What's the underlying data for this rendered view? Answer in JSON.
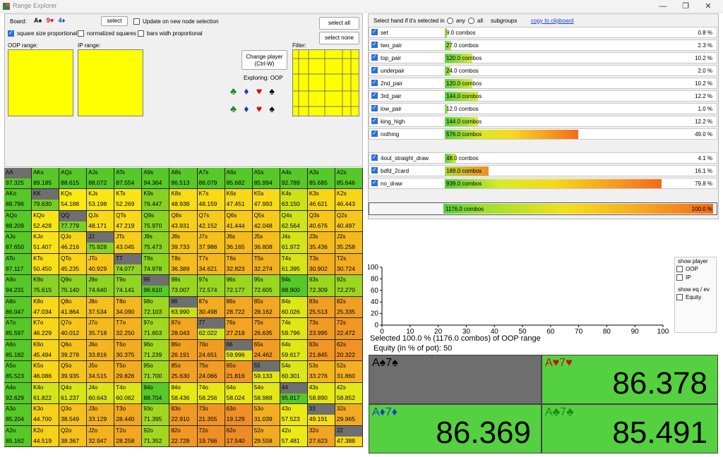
{
  "window": {
    "title": "Range Explorer",
    "controls": [
      "—",
      "❐",
      "✕"
    ]
  },
  "left": {
    "board_label": "Board:",
    "board_cards": [
      {
        "rank": "A",
        "suit": "♠",
        "color": "#000000"
      },
      {
        "rank": "9",
        "suit": "♥",
        "color": "#d01010"
      },
      {
        "rank": "4",
        "suit": "♦",
        "color": "#1a3fc8"
      }
    ],
    "select_btn": "select",
    "update_label": "Update on new node selection",
    "square_prop": "square size proportional",
    "normalized": "normalized squares",
    "bars_prop": "bars widh proportional",
    "oop_range": "OOP range:",
    "ip_range": "IP range:",
    "change_player": "Change player",
    "change_player_shortcut": "(Ctrl-W)",
    "exploring": "Exploring: OOP",
    "filter": "Filter:",
    "select_all": "select all",
    "select_none": "select none",
    "suits_row1": [
      {
        "g": "♣",
        "c": "#1a8a1a"
      },
      {
        "g": "♦",
        "c": "#1a3fc8"
      },
      {
        "g": "♥",
        "c": "#d01010"
      },
      {
        "g": "♠",
        "c": "#000000"
      }
    ],
    "suits_row2": [
      {
        "g": "♣",
        "c": "#1a8a1a"
      },
      {
        "g": "♦",
        "c": "#1a3fc8"
      },
      {
        "g": "♥",
        "c": "#d01010"
      },
      {
        "g": "♠",
        "c": "#000000"
      }
    ]
  },
  "grid": {
    "cells": [
      [
        "AA",
        "97.325",
        "AKs",
        "89.185",
        "AQs",
        "88.615",
        "AJs",
        "88.072",
        "ATs",
        "87.554",
        "A9s",
        "94.364",
        "A8s",
        "86.513",
        "A7s",
        "86.079",
        "A6s",
        "85.682",
        "A5s",
        "85.994",
        "A4s",
        "92.789",
        "A3s",
        "85.685",
        "A2s",
        "85.646"
      ],
      [
        "AKo",
        "88.796",
        "KK",
        "79.630",
        "KQs",
        "54.188",
        "KJs",
        "53.198",
        "KTs",
        "52.269",
        "K9s",
        "76.447",
        "K8s",
        "48.938",
        "K7s",
        "48.159",
        "K6s",
        "47.451",
        "K5s",
        "47.993",
        "K4s",
        "63.150",
        "K3s",
        "46.621",
        "K2s",
        "46.443"
      ],
      [
        "AQo",
        "88.209",
        "KQo",
        "52.428",
        "QQ",
        "77.779",
        "QJs",
        "48.171",
        "QTs",
        "47.219",
        "Q9s",
        "75.970",
        "Q8s",
        "43.931",
        "Q7s",
        "42.152",
        "Q6s",
        "41.444",
        "Q5s",
        "42.048",
        "Q4s",
        "62.564",
        "Q3s",
        "40.676",
        "Q2s",
        "40.497"
      ],
      [
        "AJo",
        "87.650",
        "KJo",
        "51.407",
        "QJo",
        "46.216",
        "JJ",
        "75.928",
        "JTs",
        "43.045",
        "J9s",
        "75.473",
        "J8s",
        "39.733",
        "J7s",
        "37.988",
        "J6s",
        "36.165",
        "J5s",
        "36.808",
        "J4s",
        "61.972",
        "J3s",
        "35.436",
        "J2s",
        "35.258"
      ],
      [
        "ATo",
        "87.117",
        "KTo",
        "50.450",
        "QTo",
        "45.235",
        "JTo",
        "40.929",
        "TT",
        "74.077",
        "T9s",
        "74.978",
        "T8s",
        "36.389",
        "T7s",
        "34.621",
        "T6s",
        "32.823",
        "T5s",
        "32.274",
        "T4s",
        "61.395",
        "T3s",
        "30.902",
        "T2s",
        "30.724"
      ],
      [
        "A9o",
        "94.231",
        "K9o",
        "75.615",
        "Q9o",
        "75.140",
        "J9o",
        "74.640",
        "T9o",
        "74.141",
        "99",
        "96.610",
        "98s",
        "73.007",
        "97s",
        "72.574",
        "96s",
        "72.177",
        "95s",
        "72.605",
        "94s",
        "88.900",
        "93s",
        "72.309",
        "92s",
        "72.270"
      ],
      [
        "A8o",
        "86.047",
        "K8o",
        "47.034",
        "Q8o",
        "41.864",
        "J8o",
        "37.534",
        "T8o",
        "34.090",
        "98o",
        "72.103",
        "88",
        "63.990",
        "87s",
        "30.498",
        "86s",
        "28.722",
        "85s",
        "28.162",
        "84s",
        "60.026",
        "83s",
        "25.513",
        "82s",
        "25.335"
      ],
      [
        "A7o",
        "85.597",
        "K7o",
        "46.229",
        "Q7o",
        "40.012",
        "J7o",
        "35.718",
        "T7o",
        "32.250",
        "97o",
        "71.653",
        "87o",
        "28.043",
        "77",
        "62.022",
        "76s",
        "27.218",
        "75s",
        "26.635",
        "74s",
        "59.796",
        "73s",
        "23.995",
        "72s",
        "22.472"
      ],
      [
        "A6o",
        "85.182",
        "K6o",
        "45.494",
        "Q6o",
        "39.278",
        "J6o",
        "33.816",
        "T6o",
        "30.375",
        "96o",
        "71.239",
        "86o",
        "26.191",
        "76o",
        "24.651",
        "66",
        "59.996",
        "65s",
        "24.462",
        "64s",
        "59.617",
        "63s",
        "21.845",
        "62s",
        "20.322"
      ],
      [
        "A5o",
        "85.523",
        "K5o",
        "46.086",
        "Q5o",
        "39.935",
        "J5o",
        "34.515",
        "T5o",
        "29.826",
        "95o",
        "71.700",
        "85o",
        "25.630",
        "75o",
        "24.066",
        "65o",
        "21.816",
        "55",
        "59.133",
        "54s",
        "60.301",
        "53s",
        "33.276",
        "52s",
        "31.860"
      ],
      [
        "A4o",
        "92.629",
        "K4o",
        "61.822",
        "Q4o",
        "61.237",
        "J4o",
        "60.643",
        "T4o",
        "60.062",
        "94o",
        "88.704",
        "84o",
        "58.436",
        "74o",
        "58.256",
        "64o",
        "58.024",
        "54o",
        "58.988",
        "44",
        "95.817",
        "43s",
        "58.890",
        "42s",
        "58.852"
      ],
      [
        "A3o",
        "85.204",
        "K3o",
        "44.700",
        "Q3o",
        "38.549",
        "J3o",
        "33.129",
        "T3o",
        "28.440",
        "93o",
        "71.395",
        "83o",
        "22.910",
        "73o",
        "21.355",
        "63o",
        "19.129",
        "53o",
        "31.039",
        "43o",
        "57.523",
        "33",
        "49.191",
        "32s",
        "29.965"
      ],
      [
        "A2o",
        "85.162",
        "K2o",
        "44.519",
        "Q2o",
        "38.367",
        "J2o",
        "32.947",
        "T2o",
        "28.258",
        "92o",
        "71.352",
        "82o",
        "22.728",
        "72o",
        "19.766",
        "62o",
        "17.540",
        "52o",
        "29.558",
        "42o",
        "57.481",
        "32o",
        "27.623",
        "22",
        "47.388"
      ]
    ]
  },
  "right": {
    "header": "Select hand if it's selected in",
    "opt_any": "any",
    "opt_all": "all",
    "subgroups": "subgroups",
    "copy": "copy to clipboard",
    "hands": [
      {
        "name": "set",
        "combos": "9.0 combos",
        "pct": "0.8 %",
        "frac": 0.008
      },
      {
        "name": "two_pair",
        "combos": "27.0 combos",
        "pct": "2.3 %",
        "frac": 0.023
      },
      {
        "name": "top_pair",
        "combos": "120.0 combos",
        "pct": "10.2 %",
        "frac": 0.102
      },
      {
        "name": "underpair",
        "combos": "24.0 combos",
        "pct": "2.0 %",
        "frac": 0.02
      },
      {
        "name": "2nd_pair",
        "combos": "120.0 combos",
        "pct": "10.2 %",
        "frac": 0.102
      },
      {
        "name": "3rd_pair",
        "combos": "144.0 combos",
        "pct": "12.2 %",
        "frac": 0.122
      },
      {
        "name": "low_pair",
        "combos": "12.0 combos",
        "pct": "1.0 %",
        "frac": 0.01
      },
      {
        "name": "king_high",
        "combos": "144.0 combos",
        "pct": "12.2 %",
        "frac": 0.122
      },
      {
        "name": "nothing",
        "combos": "576.0 combos",
        "pct": "49.0 %",
        "frac": 0.49
      }
    ],
    "draws": [
      {
        "name": "4out_straight_draw",
        "combos": "48.0 combos",
        "pct": "4.1 %",
        "frac": 0.041
      },
      {
        "name": "bdfd_2card",
        "combos": "189.0 combos",
        "pct": "16.1 %",
        "frac": 0.161
      },
      {
        "name": "no_draw",
        "combos": "939.0 combos",
        "pct": "79.8 %",
        "frac": 0.798
      }
    ],
    "total": {
      "combos": "1176.0 combos",
      "pct": "100.0 %",
      "frac": 1.0
    },
    "show_player": "show player",
    "oop": "OOP",
    "ip": "IP",
    "show_eq": "show eq / ev",
    "equity": "Equity",
    "selected_line": "Selected 100.0 % (1176.0 combos) of OOP range",
    "equity_line": "Equity (in % of pot): 50"
  },
  "chart_data": {
    "type": "line",
    "x_ticks": [
      "0",
      "10",
      "20",
      "30",
      "40",
      "50",
      "60",
      "70",
      "80",
      "90",
      "100"
    ],
    "y_ticks": [
      "0",
      "20",
      "40",
      "60",
      "80",
      "100"
    ],
    "xlim": [
      0,
      100
    ],
    "ylim": [
      0,
      100
    ],
    "series": []
  },
  "equity_boxes": [
    {
      "rank1": "A",
      "s1": "♠",
      "rank2": "7",
      "s2": "♠",
      "color": "#000000",
      "value": "",
      "bg": "#6e6e6e"
    },
    {
      "rank1": "A",
      "s1": "♥",
      "rank2": "7",
      "s2": "♥",
      "color": "#c81010",
      "value": "86.378",
      "bg": "#55d040"
    },
    {
      "rank1": "A",
      "s1": "♦",
      "rank2": "7",
      "s2": "♦",
      "color": "#1a3fc8",
      "value": "86.369",
      "bg": "#55d040"
    },
    {
      "rank1": "A",
      "s1": "♣",
      "rank2": "7",
      "s2": "♣",
      "color": "#1a8a1a",
      "value": "85.491",
      "bg": "#55d040"
    }
  ]
}
